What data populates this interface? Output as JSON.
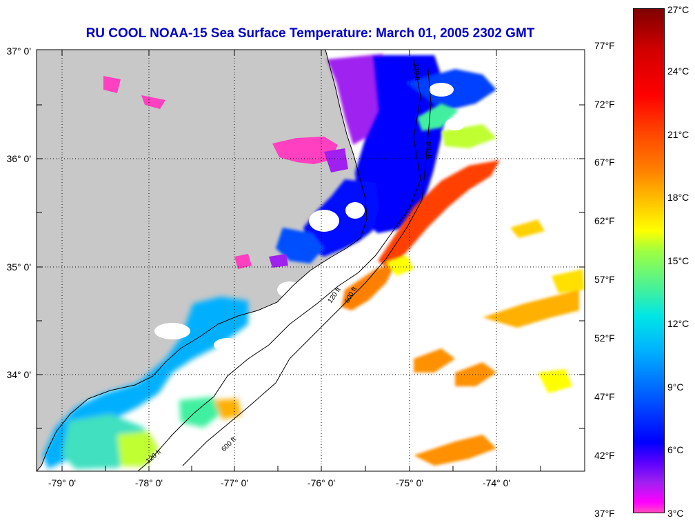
{
  "title": "RU COOL  NOAA-15  Sea Surface Temperature:  March 01, 2005 2302 GMT",
  "latitude_labels": [
    "37° 0'",
    "36° 0'",
    "35° 0'",
    "34° 0'"
  ],
  "longitude_labels": [
    "-79° 0'",
    "-78° 0'",
    "-77° 0'",
    "-76° 0'",
    "-75° 0'",
    "-74° 0'"
  ],
  "colorbar": {
    "fahrenheit_labels": [
      "77°F",
      "72°F",
      "67°F",
      "62°F",
      "57°F",
      "52°F",
      "47°F",
      "42°F",
      "37°F"
    ],
    "celsius_labels": [
      "27°C",
      "24°C",
      "21°C",
      "18°C",
      "15°C",
      "12°C",
      "9°C",
      "6°C",
      "3°C"
    ],
    "range_c": [
      3,
      27
    ]
  },
  "contour_labels": [
    "120 ft",
    "600 ft",
    "120 ft",
    "600 ft",
    "120 ft",
    "600 ft"
  ],
  "colors": {
    "land": "#c8c8c8",
    "title": "#0000c8",
    "cold": "#0000ff",
    "warm": "#ff8000"
  }
}
